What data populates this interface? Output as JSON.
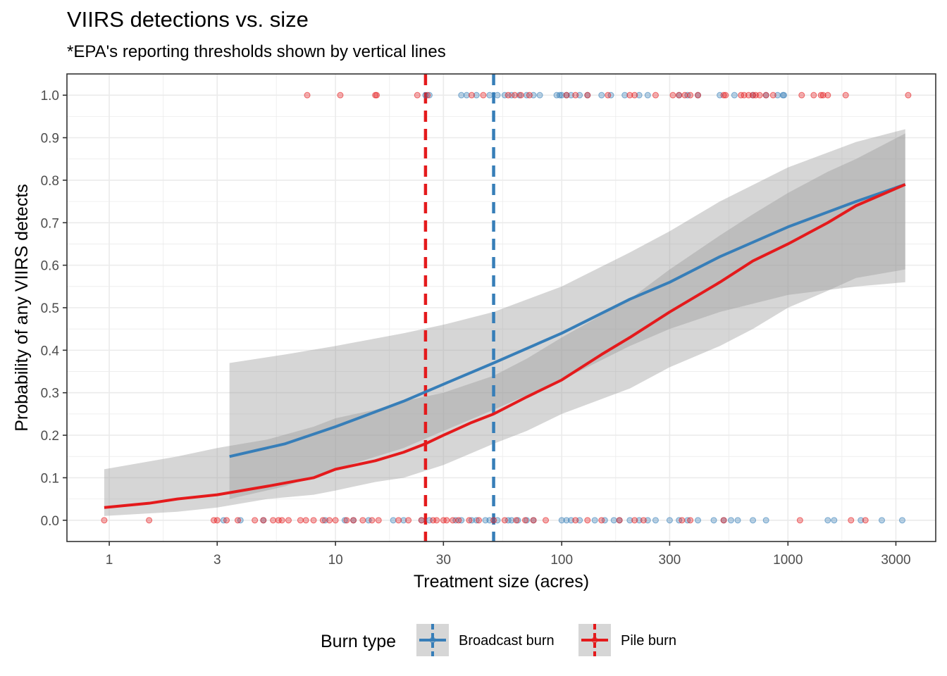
{
  "chart_data": {
    "type": "scatter",
    "title": "VIIRS detections vs. size",
    "subtitle": "*EPA's reporting thresholds shown by vertical lines",
    "xlabel": "Treatment size (acres)",
    "ylabel": "Probability of any VIIRS detects",
    "x_scale": "log10",
    "xlim": [
      0.65,
      4500
    ],
    "ylim": [
      -0.05,
      1.05
    ],
    "x_ticks": [
      1,
      3,
      10,
      30,
      100,
      300,
      1000,
      3000
    ],
    "x_tick_labels": [
      "1",
      "3",
      "10",
      "30",
      "100",
      "300",
      "1000",
      "3000"
    ],
    "y_ticks": [
      0,
      0.1,
      0.2,
      0.3,
      0.4,
      0.5,
      0.6,
      0.7,
      0.8,
      0.9,
      1.0
    ],
    "y_tick_labels": [
      "0.0",
      "0.1",
      "0.2",
      "0.3",
      "0.4",
      "0.5",
      "0.6",
      "0.7",
      "0.8",
      "0.9",
      "1.0"
    ],
    "grid": true,
    "legend": {
      "title": "Burn type",
      "position": "bottom",
      "entries": [
        "Broadcast burn",
        "Pile burn"
      ]
    },
    "colors": {
      "broadcast": "#377eb8",
      "pile": "#e41a1c",
      "ribbon": "#999999",
      "grid": "#ebebeb",
      "panel_border": "#333333"
    },
    "thresholds": [
      {
        "series": "pile",
        "x": 25
      },
      {
        "series": "broadcast",
        "x": 50
      }
    ],
    "series": [
      {
        "name": "Broadcast burn",
        "key": "broadcast",
        "fit": [
          [
            3.4,
            0.15
          ],
          [
            6,
            0.18
          ],
          [
            10,
            0.22
          ],
          [
            20,
            0.28
          ],
          [
            30,
            0.32
          ],
          [
            50,
            0.37
          ],
          [
            100,
            0.44
          ],
          [
            200,
            0.52
          ],
          [
            300,
            0.56
          ],
          [
            500,
            0.62
          ],
          [
            1000,
            0.69
          ],
          [
            2000,
            0.75
          ],
          [
            3300,
            0.79
          ]
        ],
        "ci_lower": [
          [
            3.4,
            0.05
          ],
          [
            6,
            0.08
          ],
          [
            10,
            0.12
          ],
          [
            20,
            0.17
          ],
          [
            30,
            0.21
          ],
          [
            50,
            0.26
          ],
          [
            100,
            0.33
          ],
          [
            200,
            0.41
          ],
          [
            300,
            0.45
          ],
          [
            500,
            0.49
          ],
          [
            1000,
            0.53
          ],
          [
            2000,
            0.55
          ],
          [
            3300,
            0.56
          ]
        ],
        "ci_upper": [
          [
            3.4,
            0.37
          ],
          [
            6,
            0.39
          ],
          [
            10,
            0.41
          ],
          [
            20,
            0.44
          ],
          [
            30,
            0.46
          ],
          [
            50,
            0.49
          ],
          [
            100,
            0.55
          ],
          [
            200,
            0.63
          ],
          [
            300,
            0.68
          ],
          [
            500,
            0.75
          ],
          [
            1000,
            0.83
          ],
          [
            2000,
            0.89
          ],
          [
            3300,
            0.92
          ]
        ],
        "detected_x": [
          25,
          26,
          36,
          38,
          42,
          48,
          52,
          56,
          60,
          65,
          70,
          75,
          80,
          95,
          98,
          100,
          105,
          110,
          120,
          130,
          150,
          165,
          190,
          220,
          240,
          330,
          360,
          400,
          500,
          580,
          700,
          800,
          900,
          950,
          960
        ],
        "not_detected_x": [
          3.2,
          3.8,
          4.8,
          9,
          11,
          12,
          14,
          18,
          20,
          24,
          26,
          34,
          36,
          40,
          42,
          46,
          48,
          52,
          58,
          60,
          64,
          70,
          75,
          100,
          105,
          110,
          120,
          140,
          155,
          170,
          180,
          200,
          220,
          240,
          260,
          300,
          330,
          360,
          400,
          470,
          520,
          560,
          600,
          700,
          800,
          1500,
          1600,
          2100,
          2600,
          3200
        ]
      },
      {
        "name": "Pile burn",
        "key": "pile",
        "fit": [
          [
            0.95,
            0.03
          ],
          [
            1.5,
            0.04
          ],
          [
            2,
            0.05
          ],
          [
            3,
            0.06
          ],
          [
            5,
            0.08
          ],
          [
            8,
            0.1
          ],
          [
            10,
            0.12
          ],
          [
            15,
            0.14
          ],
          [
            20,
            0.16
          ],
          [
            25,
            0.18
          ],
          [
            30,
            0.2
          ],
          [
            40,
            0.23
          ],
          [
            50,
            0.25
          ],
          [
            70,
            0.29
          ],
          [
            100,
            0.33
          ],
          [
            150,
            0.39
          ],
          [
            200,
            0.43
          ],
          [
            300,
            0.49
          ],
          [
            500,
            0.56
          ],
          [
            700,
            0.61
          ],
          [
            1000,
            0.65
          ],
          [
            1500,
            0.7
          ],
          [
            2000,
            0.74
          ],
          [
            3300,
            0.79
          ]
        ],
        "ci_lower": [
          [
            0.95,
            0.01
          ],
          [
            2,
            0.02
          ],
          [
            3,
            0.03
          ],
          [
            5,
            0.05
          ],
          [
            8,
            0.06
          ],
          [
            10,
            0.07
          ],
          [
            15,
            0.09
          ],
          [
            20,
            0.1
          ],
          [
            30,
            0.13
          ],
          [
            50,
            0.18
          ],
          [
            70,
            0.21
          ],
          [
            100,
            0.25
          ],
          [
            200,
            0.31
          ],
          [
            300,
            0.36
          ],
          [
            500,
            0.41
          ],
          [
            700,
            0.45
          ],
          [
            1000,
            0.5
          ],
          [
            1500,
            0.54
          ],
          [
            2000,
            0.57
          ],
          [
            3300,
            0.59
          ]
        ],
        "ci_upper": [
          [
            0.95,
            0.12
          ],
          [
            2,
            0.15
          ],
          [
            3,
            0.17
          ],
          [
            5,
            0.19
          ],
          [
            8,
            0.22
          ],
          [
            10,
            0.24
          ],
          [
            15,
            0.26
          ],
          [
            20,
            0.28
          ],
          [
            30,
            0.3
          ],
          [
            50,
            0.34
          ],
          [
            70,
            0.38
          ],
          [
            100,
            0.43
          ],
          [
            200,
            0.52
          ],
          [
            300,
            0.59
          ],
          [
            500,
            0.67
          ],
          [
            700,
            0.72
          ],
          [
            1000,
            0.77
          ],
          [
            1500,
            0.82
          ],
          [
            2000,
            0.85
          ],
          [
            3300,
            0.91
          ]
        ],
        "detected_x": [
          7.5,
          10.5,
          15,
          15.2,
          23,
          25.5,
          40,
          45,
          58,
          62,
          66,
          72,
          105,
          115,
          130,
          160,
          200,
          210,
          260,
          310,
          330,
          350,
          370,
          400,
          520,
          530,
          620,
          640,
          670,
          700,
          720,
          750,
          800,
          860,
          1150,
          1300,
          1400,
          1430,
          1500,
          1800,
          3400
        ],
        "not_detected_x": [
          0.95,
          1.5,
          2.9,
          3.0,
          3.3,
          3.7,
          4.4,
          4.8,
          5.3,
          5.6,
          5.8,
          6.2,
          7.0,
          7.4,
          8.0,
          8.8,
          9.4,
          10,
          11.2,
          12,
          13.2,
          14.5,
          15.5,
          19,
          21,
          24,
          27,
          28,
          30,
          31,
          33,
          35,
          39,
          43,
          50,
          56,
          63,
          69,
          75,
          85,
          115,
          130,
          150,
          180,
          210,
          230,
          340,
          370,
          520,
          1130,
          1900,
          2200
        ]
      }
    ]
  }
}
